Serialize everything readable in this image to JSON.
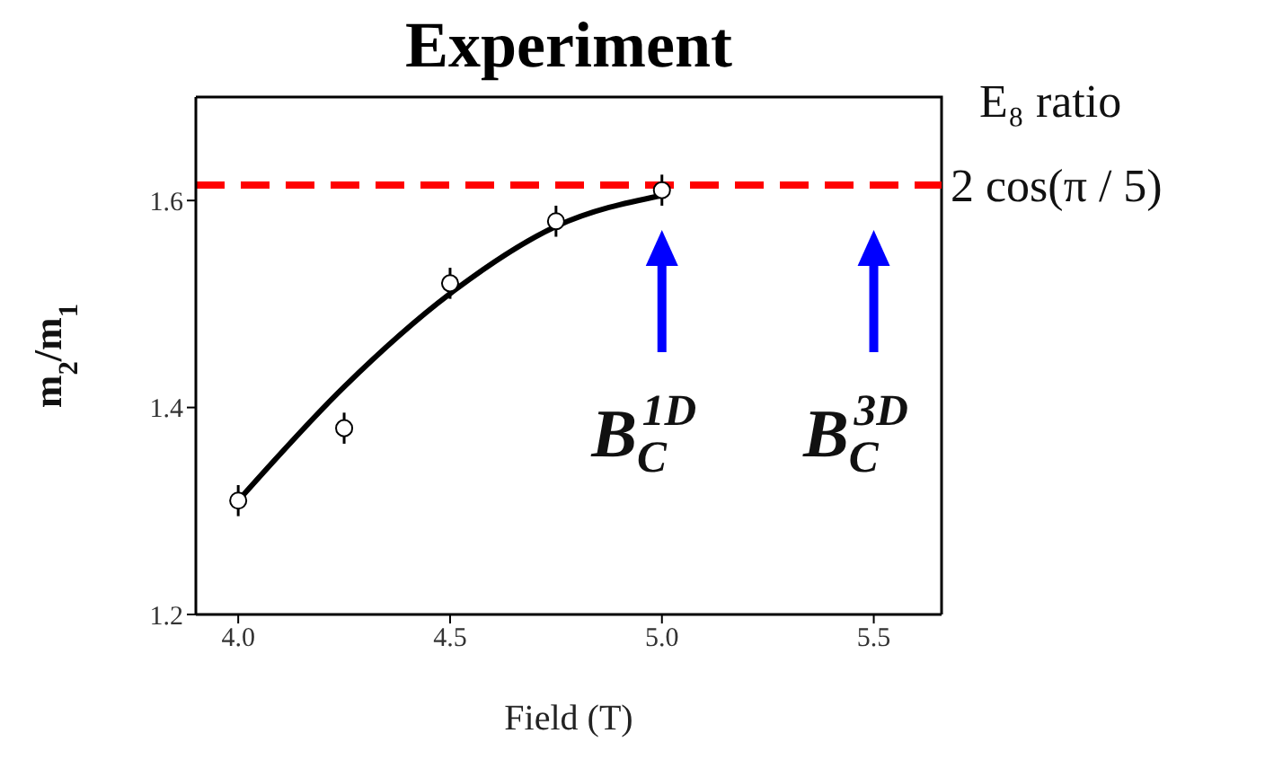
{
  "chart_data": {
    "type": "scatter",
    "title": "Experiment",
    "xlabel": "Field (T)",
    "ylabel": "m$_{2}$/m$_{1}$",
    "xlim": [
      3.9,
      5.66
    ],
    "xticks": [
      {
        "value": 4.0,
        "label": "4.0"
      },
      {
        "value": 4.5,
        "label": "4.5"
      },
      {
        "value": 5.0,
        "label": "5.0"
      },
      {
        "value": 5.5,
        "label": "5.5"
      }
    ],
    "ylim": [
      1.2,
      1.7
    ],
    "yticks": [
      {
        "value": 1.2,
        "label": "1.2"
      },
      {
        "value": 1.4,
        "label": "1.4"
      },
      {
        "value": 1.6,
        "label": "1.6"
      }
    ],
    "series": [
      {
        "marker": "circle",
        "color": "#000000",
        "x": [
          4.0,
          4.25,
          4.5,
          4.75,
          5.0
        ],
        "values": [
          1.31,
          1.38,
          1.52,
          1.58,
          1.61
        ],
        "errors": [
          0.015,
          0.015,
          0.015,
          0.015,
          0.015
        ]
      },
      {
        "type": "line",
        "color": "#000000",
        "x": [
          4.0,
          4.25,
          4.5,
          4.75,
          5.0
        ],
        "values": [
          1.31,
          1.42,
          1.51,
          1.575,
          1.605
        ]
      }
    ],
    "ref_lines": [
      {
        "axis": "y",
        "value": 1.615,
        "label": "2 cos(π / 5)",
        "color": "#ff0000",
        "line_style": "dashed"
      }
    ],
    "annotations": [
      "E₈ ratio",
      {
        "text": "B$_{C}$$^{1D}$",
        "x": 5.0,
        "y": 1.615
      },
      {
        "text": "B$_{C}$$^{3D}$",
        "x": 5.5,
        "y": 1.615
      }
    ]
  }
}
